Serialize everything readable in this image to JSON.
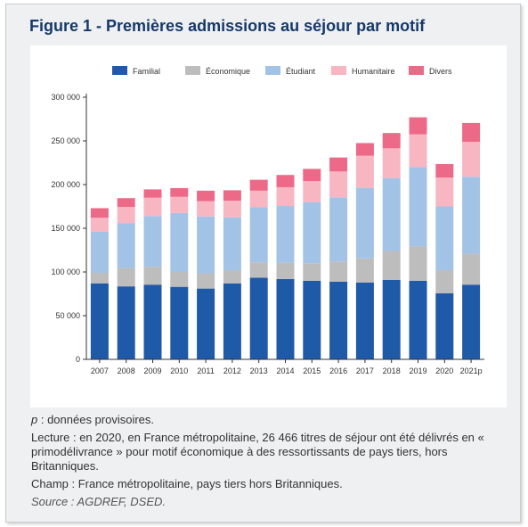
{
  "figure": {
    "title": "Figure 1 - Premières admissions au séjour par motif"
  },
  "chart_data": {
    "type": "bar",
    "stacked": true,
    "categories": [
      "2007",
      "2008",
      "2009",
      "2010",
      "2011",
      "2012",
      "2013",
      "2014",
      "2015",
      "2016",
      "2017",
      "2018",
      "2019",
      "2020",
      "2021p"
    ],
    "series": [
      {
        "name": "Familial",
        "color": "#1f5aa8",
        "values": [
          87000,
          83500,
          85500,
          83000,
          81000,
          87000,
          93500,
          92000,
          90000,
          89000,
          88000,
          91000,
          90000,
          75500,
          85500
        ]
      },
      {
        "name": "Économique",
        "color": "#bdbdbd",
        "values": [
          12000,
          21000,
          20500,
          17000,
          17500,
          15000,
          17500,
          18500,
          20000,
          23000,
          27500,
          33000,
          39500,
          26500,
          35500
        ]
      },
      {
        "name": "Étudiant",
        "color": "#a3c3e6",
        "values": [
          47000,
          51500,
          58000,
          67500,
          65000,
          60500,
          63000,
          65000,
          70000,
          73500,
          80500,
          83500,
          90500,
          73000,
          88000
        ]
      },
      {
        "name": "Humanitaire",
        "color": "#f7b6c2",
        "values": [
          16000,
          18500,
          21000,
          18500,
          17500,
          19000,
          19000,
          21500,
          24000,
          29500,
          37000,
          34000,
          37500,
          33000,
          40000
        ]
      },
      {
        "name": "Divers",
        "color": "#ec6a87",
        "values": [
          11000,
          10000,
          9500,
          10000,
          12000,
          12000,
          12500,
          14000,
          14000,
          16000,
          14500,
          17500,
          19500,
          15500,
          21500
        ]
      }
    ],
    "ylim": [
      0,
      300000
    ],
    "yticks": [
      0,
      50000,
      100000,
      150000,
      200000,
      250000,
      300000
    ],
    "ytick_labels": [
      "0",
      "50 000",
      "100 000",
      "150 000",
      "200 000",
      "250 000",
      "300 000"
    ],
    "xlabel": "",
    "ylabel": "",
    "grid": false,
    "legend_position": "top"
  },
  "notes": {
    "provisional_letter": "p",
    "provisional_text": " : données provisoires.",
    "reading": "Lecture : en 2020, en France métropolitaine, 26 466 titres de séjour ont été délivrés en « primodélivrance » pour motif économique à des ressortissants de pays tiers, hors Britanniques.",
    "scope": "Champ : France métropolitaine, pays tiers hors Britanniques.",
    "source": "Source : AGDREF, DSED."
  }
}
